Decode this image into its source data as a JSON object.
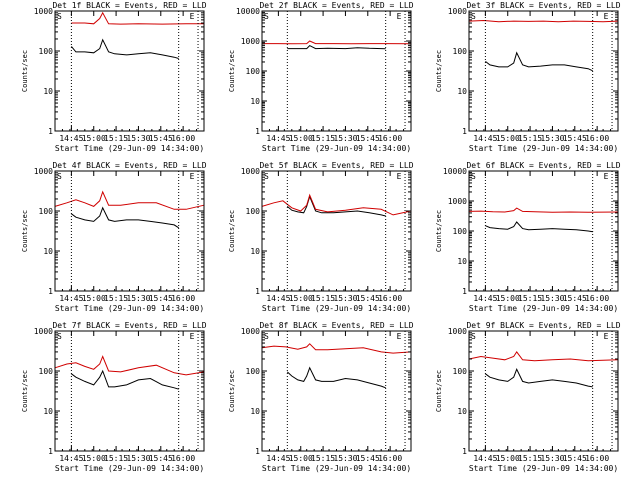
{
  "figure": {
    "panel_count": 9,
    "colors": {
      "events": "#000000",
      "lld": "#d00000",
      "axes": "#000000",
      "background": "#ffffff"
    }
  },
  "chart_data": [
    {
      "type": "line",
      "title": "Det 1f BLACK = Events, RED = LLD",
      "xlabel": "Start Time (29-Jun-09 14:34:00)",
      "ylabel": "Counts/sec",
      "x_ticks": [
        "14:45",
        "15:00",
        "15:15",
        "15:30",
        "15:45",
        "16:00"
      ],
      "xlim_minutes": [
        0,
        100
      ],
      "yscale": "log",
      "ylim": [
        1,
        1000
      ],
      "y_ticks": [
        "1",
        "10",
        "100",
        "1000"
      ],
      "markers": [
        {
          "label": "S",
          "x_minutes": 3
        },
        {
          "label": "E",
          "x_minutes": 92
        }
      ],
      "dotted_lines_minutes": [
        11,
        83,
        96
      ],
      "series": [
        {
          "name": "Events",
          "color": "#000000",
          "x_minutes": [
            11,
            14,
            20,
            26,
            30,
            32,
            36,
            40,
            48,
            56,
            64,
            72,
            80,
            83
          ],
          "values": [
            130,
            95,
            95,
            90,
            115,
            190,
            95,
            85,
            80,
            85,
            90,
            80,
            70,
            65
          ]
        },
        {
          "name": "LLD",
          "color": "#d00000",
          "x_minutes": [
            11,
            20,
            26,
            30,
            32,
            36,
            44,
            56,
            72,
            88,
            100
          ],
          "values": [
            500,
            500,
            480,
            650,
            900,
            480,
            470,
            480,
            470,
            480,
            480
          ]
        }
      ]
    },
    {
      "type": "line",
      "title": "Det 2f BLACK = Events, RED = LLD",
      "xlabel": "Start Time (29-Jun-09 14:34:00)",
      "ylabel": "Counts/sec",
      "x_ticks": [
        "14:45",
        "15:00",
        "15:15",
        "15:30",
        "15:45",
        "16:00"
      ],
      "xlim_minutes": [
        0,
        100
      ],
      "yscale": "log",
      "ylim": [
        1,
        10000
      ],
      "y_ticks": [
        "1",
        "10",
        "100",
        "1000",
        "10000"
      ],
      "markers": [
        {
          "label": "S",
          "x_minutes": 3
        },
        {
          "label": "E",
          "x_minutes": 92
        }
      ],
      "dotted_lines_minutes": [
        17,
        83,
        96
      ],
      "series": [
        {
          "name": "Events",
          "color": "#000000",
          "x_minutes": [
            17,
            24,
            30,
            32,
            36,
            44,
            56,
            64,
            72,
            80,
            83
          ],
          "values": [
            560,
            560,
            560,
            700,
            560,
            570,
            560,
            600,
            570,
            560,
            550
          ]
        },
        {
          "name": "LLD",
          "color": "#d00000",
          "x_minutes": [
            0,
            10,
            20,
            30,
            32,
            36,
            48,
            60,
            72,
            84,
            100
          ],
          "values": [
            820,
            820,
            810,
            820,
            1000,
            820,
            820,
            810,
            820,
            820,
            810
          ]
        }
      ]
    },
    {
      "type": "line",
      "title": "Det 3f BLACK = Events, RED = LLD",
      "xlabel": "Start Time (29-Jun-09 14:34:00)",
      "ylabel": "Counts/sec",
      "x_ticks": [
        "14:45",
        "15:00",
        "15:15",
        "15:30",
        "15:45",
        "16:00"
      ],
      "xlim_minutes": [
        0,
        100
      ],
      "yscale": "log",
      "ylim": [
        1,
        1000
      ],
      "y_ticks": [
        "1",
        "10",
        "100",
        "1000"
      ],
      "markers": [
        {
          "label": "S",
          "x_minutes": 3
        },
        {
          "label": "E",
          "x_minutes": 92
        }
      ],
      "dotted_lines_minutes": [
        11,
        83,
        96
      ],
      "series": [
        {
          "name": "Events",
          "color": "#000000",
          "x_minutes": [
            11,
            14,
            20,
            26,
            30,
            32,
            36,
            40,
            48,
            56,
            64,
            72,
            80,
            83
          ],
          "values": [
            55,
            45,
            40,
            40,
            50,
            90,
            45,
            40,
            42,
            45,
            45,
            40,
            36,
            32
          ]
        },
        {
          "name": "LLD",
          "color": "#d00000",
          "x_minutes": [
            0,
            10,
            20,
            30,
            40,
            50,
            60,
            70,
            80,
            90,
            100
          ],
          "values": [
            560,
            580,
            540,
            560,
            550,
            560,
            540,
            560,
            550,
            540,
            560
          ]
        }
      ]
    },
    {
      "type": "line",
      "title": "Det 4f BLACK = Events, RED = LLD",
      "xlabel": "Start Time (29-Jun-09 14:34:00)",
      "ylabel": "Counts/sec",
      "x_ticks": [
        "14:45",
        "15:00",
        "15:15",
        "15:30",
        "15:45",
        "16:00"
      ],
      "xlim_minutes": [
        0,
        100
      ],
      "yscale": "log",
      "ylim": [
        1,
        1000
      ],
      "y_ticks": [
        "1",
        "10",
        "100",
        "1000"
      ],
      "markers": [
        {
          "label": "S",
          "x_minutes": 3
        },
        {
          "label": "E",
          "x_minutes": 92
        }
      ],
      "dotted_lines_minutes": [
        11,
        83,
        96
      ],
      "series": [
        {
          "name": "Events",
          "color": "#000000",
          "x_minutes": [
            11,
            14,
            20,
            26,
            30,
            32,
            36,
            40,
            48,
            56,
            64,
            72,
            80,
            83
          ],
          "values": [
            85,
            70,
            60,
            55,
            75,
            120,
            60,
            55,
            60,
            60,
            55,
            50,
            45,
            38
          ]
        },
        {
          "name": "LLD",
          "color": "#d00000",
          "x_minutes": [
            0,
            8,
            14,
            20,
            26,
            30,
            32,
            36,
            44,
            56,
            68,
            80,
            88,
            100
          ],
          "values": [
            130,
            160,
            190,
            160,
            130,
            180,
            300,
            140,
            140,
            160,
            160,
            110,
            110,
            140
          ]
        }
      ]
    },
    {
      "type": "line",
      "title": "Det 5f BLACK = Events, RED = LLD",
      "xlabel": "Start Time (29-Jun-09 14:34:00)",
      "ylabel": "Counts/sec",
      "x_ticks": [
        "14:45",
        "15:00",
        "15:15",
        "15:30",
        "15:45",
        "16:00"
      ],
      "xlim_minutes": [
        0,
        100
      ],
      "yscale": "log",
      "ylim": [
        1,
        1000
      ],
      "y_ticks": [
        "1",
        "10",
        "100",
        "1000"
      ],
      "markers": [
        {
          "label": "S",
          "x_minutes": 3
        },
        {
          "label": "E",
          "x_minutes": 92
        }
      ],
      "dotted_lines_minutes": [
        17,
        83,
        96
      ],
      "series": [
        {
          "name": "Events",
          "color": "#000000",
          "x_minutes": [
            17,
            20,
            24,
            28,
            30,
            32,
            36,
            40,
            48,
            56,
            64,
            72,
            80,
            83
          ],
          "values": [
            130,
            105,
            95,
            90,
            130,
            230,
            100,
            90,
            90,
            95,
            100,
            90,
            80,
            75
          ]
        },
        {
          "name": "LLD",
          "color": "#d00000",
          "x_minutes": [
            0,
            8,
            14,
            20,
            26,
            30,
            32,
            36,
            44,
            56,
            68,
            80,
            88,
            100
          ],
          "values": [
            130,
            160,
            180,
            120,
            100,
            140,
            250,
            110,
            95,
            105,
            120,
            110,
            80,
            100
          ]
        }
      ]
    },
    {
      "type": "line",
      "title": "Det 6f BLACK = Events, RED = LLD",
      "xlabel": "Start Time (29-Jun-09 14:34:00)",
      "ylabel": "Counts/sec",
      "x_ticks": [
        "14:45",
        "15:00",
        "15:15",
        "15:30",
        "15:45",
        "16:00"
      ],
      "xlim_minutes": [
        0,
        100
      ],
      "yscale": "log",
      "ylim": [
        1,
        10000
      ],
      "y_ticks": [
        "1",
        "10",
        "100",
        "1000",
        "10000"
      ],
      "markers": [
        {
          "label": "S",
          "x_minutes": 3
        },
        {
          "label": "E",
          "x_minutes": 92
        }
      ],
      "dotted_lines_minutes": [
        11,
        83,
        96
      ],
      "series": [
        {
          "name": "Events",
          "color": "#000000",
          "x_minutes": [
            11,
            14,
            20,
            26,
            30,
            32,
            36,
            40,
            48,
            56,
            64,
            72,
            80,
            83
          ],
          "values": [
            150,
            130,
            120,
            115,
            140,
            200,
            120,
            110,
            115,
            120,
            115,
            110,
            100,
            95
          ]
        },
        {
          "name": "LLD",
          "color": "#d00000",
          "x_minutes": [
            0,
            8,
            16,
            24,
            30,
            32,
            36,
            44,
            56,
            68,
            80,
            100
          ],
          "values": [
            450,
            460,
            440,
            430,
            480,
            580,
            450,
            440,
            420,
            430,
            420,
            430
          ]
        }
      ]
    },
    {
      "type": "line",
      "title": "Det 7f BLACK = Events, RED = LLD",
      "xlabel": "Start Time (29-Jun-09 14:34:00)",
      "ylabel": "Counts/sec",
      "x_ticks": [
        "14:45",
        "15:00",
        "15:15",
        "15:30",
        "15:45",
        "16:00"
      ],
      "xlim_minutes": [
        0,
        100
      ],
      "yscale": "log",
      "ylim": [
        1,
        1000
      ],
      "y_ticks": [
        "1",
        "10",
        "100",
        "1000"
      ],
      "markers": [
        {
          "label": "S",
          "x_minutes": 3
        },
        {
          "label": "E",
          "x_minutes": 92
        }
      ],
      "dotted_lines_minutes": [
        11,
        83,
        96
      ],
      "series": [
        {
          "name": "Events",
          "color": "#000000",
          "x_minutes": [
            11,
            14,
            20,
            26,
            30,
            32,
            36,
            40,
            48,
            56,
            64,
            72,
            80,
            83
          ],
          "values": [
            85,
            70,
            55,
            45,
            70,
            100,
            40,
            40,
            45,
            60,
            65,
            45,
            38,
            35
          ]
        },
        {
          "name": "LLD",
          "color": "#d00000",
          "x_minutes": [
            0,
            8,
            14,
            20,
            26,
            30,
            32,
            36,
            44,
            56,
            68,
            80,
            88,
            100
          ],
          "values": [
            120,
            150,
            160,
            130,
            110,
            150,
            230,
            100,
            95,
            120,
            140,
            90,
            80,
            95
          ]
        }
      ]
    },
    {
      "type": "line",
      "title": "Det 8f BLACK = Events, RED = LLD",
      "xlabel": "Start Time (29-Jun-09 14:34:00)",
      "ylabel": "Counts/sec",
      "x_ticks": [
        "14:45",
        "15:00",
        "15:15",
        "15:30",
        "15:45",
        "16:00"
      ],
      "xlim_minutes": [
        0,
        100
      ],
      "yscale": "log",
      "ylim": [
        1,
        1000
      ],
      "y_ticks": [
        "1",
        "10",
        "100",
        "1000"
      ],
      "markers": [
        {
          "label": "S",
          "x_minutes": 3
        },
        {
          "label": "E",
          "x_minutes": 92
        }
      ],
      "dotted_lines_minutes": [
        17,
        83,
        96
      ],
      "series": [
        {
          "name": "Events",
          "color": "#000000",
          "x_minutes": [
            17,
            20,
            24,
            28,
            30,
            32,
            36,
            40,
            48,
            56,
            64,
            72,
            80,
            83
          ],
          "values": [
            95,
            75,
            60,
            55,
            75,
            120,
            60,
            55,
            55,
            65,
            60,
            50,
            42,
            38
          ]
        },
        {
          "name": "LLD",
          "color": "#d00000",
          "x_minutes": [
            0,
            8,
            16,
            24,
            30,
            32,
            36,
            44,
            56,
            68,
            80,
            88,
            100
          ],
          "values": [
            380,
            420,
            400,
            350,
            400,
            480,
            340,
            340,
            360,
            380,
            300,
            280,
            300
          ]
        }
      ]
    },
    {
      "type": "line",
      "title": "Det 9f BLACK = Events, RED = LLD",
      "xlabel": "Start Time (29-Jun-09 14:34:00)",
      "ylabel": "Counts/sec",
      "x_ticks": [
        "14:45",
        "15:00",
        "15:15",
        "15:30",
        "15:45",
        "16:00"
      ],
      "xlim_minutes": [
        0,
        100
      ],
      "yscale": "log",
      "ylim": [
        1,
        1000
      ],
      "y_ticks": [
        "1",
        "10",
        "100",
        "1000"
      ],
      "markers": [
        {
          "label": "S",
          "x_minutes": 3
        },
        {
          "label": "E",
          "x_minutes": 92
        }
      ],
      "dotted_lines_minutes": [
        11,
        83,
        96
      ],
      "series": [
        {
          "name": "Events",
          "color": "#000000",
          "x_minutes": [
            11,
            14,
            20,
            26,
            30,
            32,
            36,
            40,
            48,
            56,
            64,
            72,
            80,
            83
          ],
          "values": [
            85,
            70,
            60,
            55,
            70,
            110,
            55,
            50,
            55,
            60,
            55,
            50,
            42,
            40
          ]
        },
        {
          "name": "LLD",
          "color": "#d00000",
          "x_minutes": [
            0,
            8,
            16,
            24,
            30,
            32,
            36,
            44,
            56,
            68,
            80,
            100
          ],
          "values": [
            200,
            230,
            210,
            190,
            230,
            300,
            190,
            180,
            190,
            200,
            180,
            190
          ]
        }
      ]
    }
  ]
}
